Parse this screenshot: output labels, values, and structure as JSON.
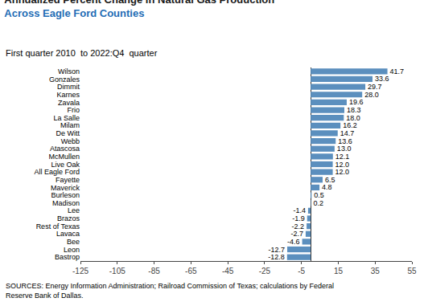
{
  "chart_data": {
    "type": "bar",
    "orientation": "horizontal",
    "title": "Annualized Percent Change in Natural Gas Production\nAcross Eagle Ford Counties",
    "subtitle": "First quarter 2010  to 2022:Q4  quarter",
    "annotations": [
      "SOURCES: Energy Information Administration; Railroad Commission of Texas; calculations by Federal\nReserve Bank of Dallas."
    ],
    "categories": [
      "Wilson",
      "Gonzales",
      "Dimmit",
      "Karnes",
      "Zavala",
      "Frio",
      "La Salle",
      "Milam",
      "De Witt",
      "Webb",
      "Atascosa",
      "McMullen",
      "Live Oak",
      "All Eagle Ford",
      "Fayette",
      "Maverick",
      "Burleson",
      "Madison",
      "Lee",
      "Brazos",
      "Rest of Texas",
      "Lavaca",
      "Bee",
      "Leon",
      "Bastrop"
    ],
    "values": [
      41.7,
      33.6,
      29.7,
      28.0,
      19.6,
      18.3,
      18.0,
      16.2,
      14.7,
      13.6,
      13.0,
      12.1,
      12.0,
      12.0,
      6.5,
      4.8,
      0.5,
      0.2,
      -1.4,
      -1.9,
      -2.2,
      -2.7,
      -4.6,
      -12.7,
      -12.8
    ],
    "value_labels": [
      "41.7",
      "33.6",
      "29.7",
      "28.0",
      "19.6",
      "18.3",
      "18.0",
      "16.2",
      "14.7",
      "13.6",
      "13.0",
      "12.1",
      "12.0",
      "12.0",
      "6.5",
      "4.8",
      "0.5",
      "0.2",
      "-1.4",
      "-1.9",
      "-2.2",
      "-2.7",
      "-4.6",
      "-12.7",
      "-12.8"
    ],
    "data_labels": true,
    "color": "#5b8fbe",
    "xlim": [
      -125,
      55
    ],
    "xticks": [
      -125,
      -105,
      -85,
      -65,
      -45,
      -25,
      -5,
      15,
      35,
      55
    ],
    "grid": false
  }
}
